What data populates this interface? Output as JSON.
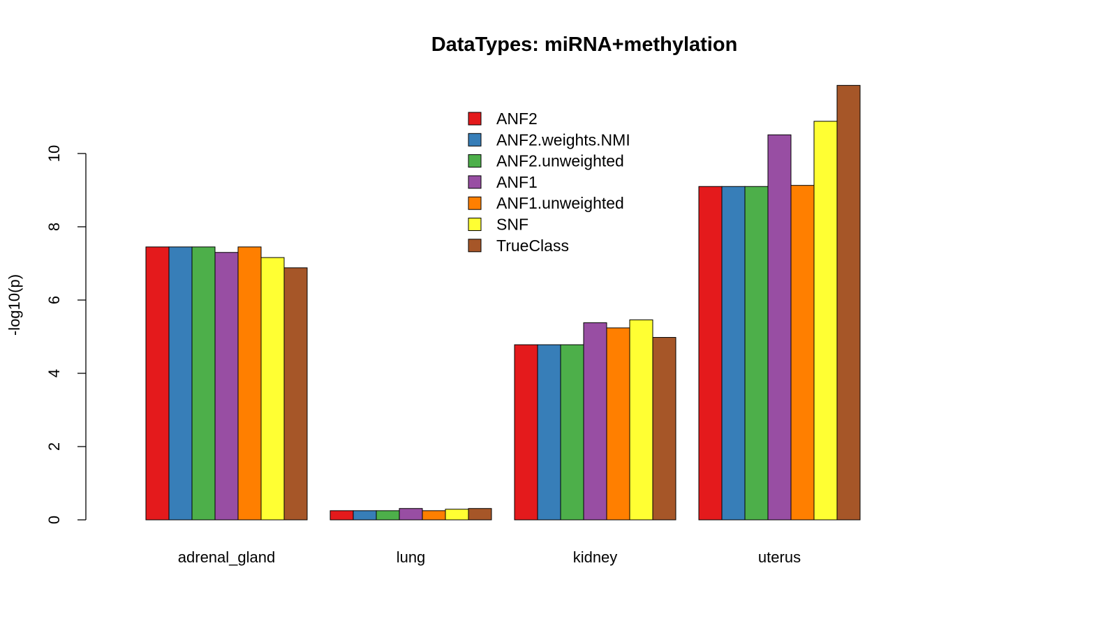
{
  "chart_data": {
    "type": "bar",
    "title": "DataTypes: miRNA+methylation",
    "xlabel": "",
    "ylabel": "-log10(p)",
    "ylim": [
      0,
      12
    ],
    "yticks": [
      0,
      2,
      4,
      6,
      8,
      10
    ],
    "grid": false,
    "legend_position": "top-center",
    "categories": [
      "adrenal_gland",
      "lung",
      "kidney",
      "uterus"
    ],
    "series": [
      {
        "name": "ANF2",
        "color": "#E41A1C",
        "values": [
          7.45,
          0.25,
          4.78,
          9.1
        ]
      },
      {
        "name": "ANF2.weights.NMI",
        "color": "#377EB8",
        "values": [
          7.45,
          0.25,
          4.78,
          9.1
        ]
      },
      {
        "name": "ANF2.unweighted",
        "color": "#4DAF4A",
        "values": [
          7.45,
          0.25,
          4.78,
          9.1
        ]
      },
      {
        "name": "ANF1",
        "color": "#984EA3",
        "values": [
          7.3,
          0.31,
          5.38,
          10.51
        ]
      },
      {
        "name": "ANF1.unweighted",
        "color": "#FF7F00",
        "values": [
          7.45,
          0.25,
          5.24,
          9.13
        ]
      },
      {
        "name": "SNF",
        "color": "#FFFF33",
        "values": [
          7.16,
          0.29,
          5.46,
          10.88
        ]
      },
      {
        "name": "TrueClass",
        "color": "#A65628",
        "values": [
          6.88,
          0.31,
          4.98,
          11.86
        ]
      }
    ]
  }
}
